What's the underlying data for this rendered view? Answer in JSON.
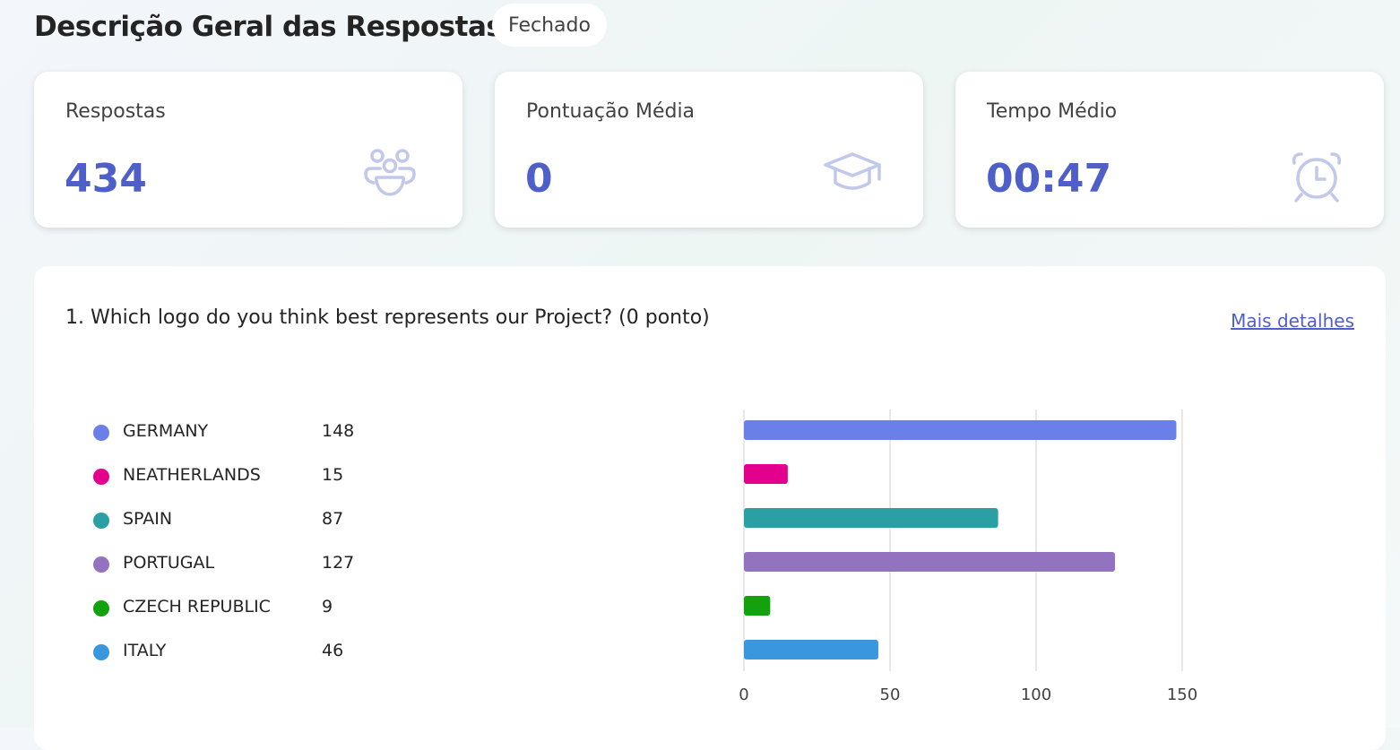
{
  "header": {
    "title": "Descrição Geral das Respostas",
    "status": "Fechado"
  },
  "stats": [
    {
      "label": "Respostas",
      "value": "434",
      "icon": "people-icon"
    },
    {
      "label": "Pontuação Média",
      "value": "0",
      "icon": "graduation-cap-icon"
    },
    {
      "label": "Tempo Médio",
      "value": "00:47",
      "icon": "alarm-clock-icon"
    }
  ],
  "question": {
    "text": "1. Which logo do you think best represents our Project? (0 ponto)",
    "more_link": "Mais detalhes"
  },
  "legend": [
    {
      "label": "GERMANY",
      "count": "148",
      "color": "#6b7fe8"
    },
    {
      "label": "NEATHERLANDS",
      "count": "15",
      "color": "#e3008c"
    },
    {
      "label": "SPAIN",
      "count": "87",
      "color": "#2aa0a4"
    },
    {
      "label": "PORTUGAL",
      "count": "127",
      "color": "#9373c0"
    },
    {
      "label": "CZECH REPUBLIC",
      "count": "9",
      "color": "#13a10e"
    },
    {
      "label": "ITALY",
      "count": "46",
      "color": "#3a96dd"
    }
  ],
  "chart_data": {
    "type": "bar",
    "orientation": "horizontal",
    "categories": [
      "GERMANY",
      "NEATHERLANDS",
      "SPAIN",
      "PORTUGAL",
      "CZECH REPUBLIC",
      "ITALY"
    ],
    "values": [
      148,
      15,
      87,
      127,
      9,
      46
    ],
    "colors": [
      "#6b7fe8",
      "#e3008c",
      "#2aa0a4",
      "#9373c0",
      "#13a10e",
      "#3a96dd"
    ],
    "xticks": [
      "0",
      "50",
      "100",
      "150"
    ],
    "xlim": [
      0,
      200
    ],
    "grid": true
  }
}
